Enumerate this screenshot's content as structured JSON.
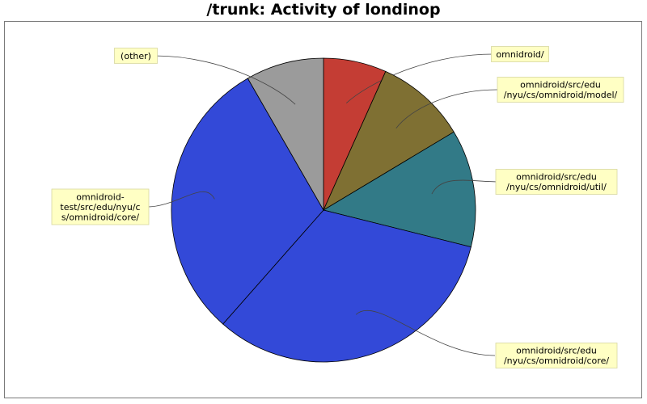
{
  "chart_data": {
    "type": "pie",
    "title": "/trunk: Activity of londinop",
    "slices": [
      {
        "label": "omnidroid/",
        "value": 6.7,
        "color": "#c43d34"
      },
      {
        "label": "omnidroid/src/edu\n/nyu/cs/omnidroid/model/",
        "value": 9.7,
        "color": "#7f7033"
      },
      {
        "label": "omnidroid/src/edu\n/nyu/cs/omnidroid/util/",
        "value": 12.5,
        "color": "#327a87"
      },
      {
        "label": "omnidroid/src/edu\n/nyu/cs/omnidroid/core/",
        "value": 32.6,
        "color": "#3349d8"
      },
      {
        "label": "omnidroid-\ntest/src/edu/nyu/c\ns/omnidroid/core/",
        "value": 30.2,
        "color": "#3349d8"
      },
      {
        "label": "(other)",
        "value": 8.3,
        "color": "#9b9b9b"
      }
    ],
    "legend": "none",
    "labels": "callouts"
  }
}
